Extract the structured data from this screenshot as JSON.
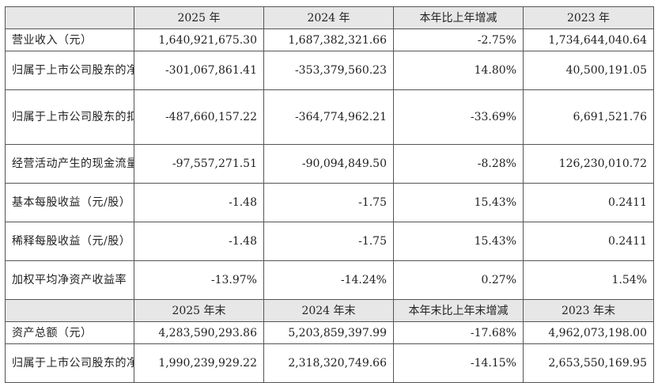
{
  "header1": [
    "",
    "2025 年",
    "2024 年",
    "本年比上年增减",
    "2023 年"
  ],
  "rows1": [
    {
      "label": "营业收入（元）",
      "values": [
        "1,640,921,675.30",
        "1,687,382,321.66",
        "-2.75%",
        "1,734,644,040.64"
      ]
    },
    {
      "label": "归属于上市公司股东的净利润（元）",
      "values": [
        "-301,067,861.41",
        "-353,379,560.23",
        "14.80%",
        "40,500,191.05"
      ]
    },
    {
      "label": "归属于上市公司股东的扣除非经常性损益的净利润（元）",
      "values": [
        "-487,660,157.22",
        "-364,774,962.21",
        "-33.69%",
        "6,691,521.76"
      ]
    },
    {
      "label": "经营活动产生的现金流量净额（元）",
      "values": [
        "-97,557,271.51",
        "-90,094,849.50",
        "-8.28%",
        "126,230,010.72"
      ]
    },
    {
      "label": "基本每股收益（元/股）",
      "values": [
        "-1.48",
        "-1.75",
        "15.43%",
        "0.2411"
      ]
    },
    {
      "label": "稀释每股收益（元/股）",
      "values": [
        "-1.48",
        "-1.75",
        "15.43%",
        "0.2411"
      ]
    },
    {
      "label": "加权平均净资产收益率",
      "values": [
        "-13.97%",
        "-14.24%",
        "0.27%",
        "1.54%"
      ]
    }
  ],
  "header2": [
    "",
    "2025 年末",
    "2024 年末",
    "本年末比上年末增减",
    "2023 年末"
  ],
  "rows2": [
    {
      "label": "资产总额（元）",
      "values": [
        "4,283,590,293.86",
        "5,203,859,397.99",
        "-17.68%",
        "4,962,073,198.00"
      ]
    },
    {
      "label": "归属于上市公司股东的净资产（元）",
      "values": [
        "1,990,239,929.22",
        "2,318,320,749.66",
        "-14.15%",
        "2,653,550,169.95"
      ]
    }
  ]
}
